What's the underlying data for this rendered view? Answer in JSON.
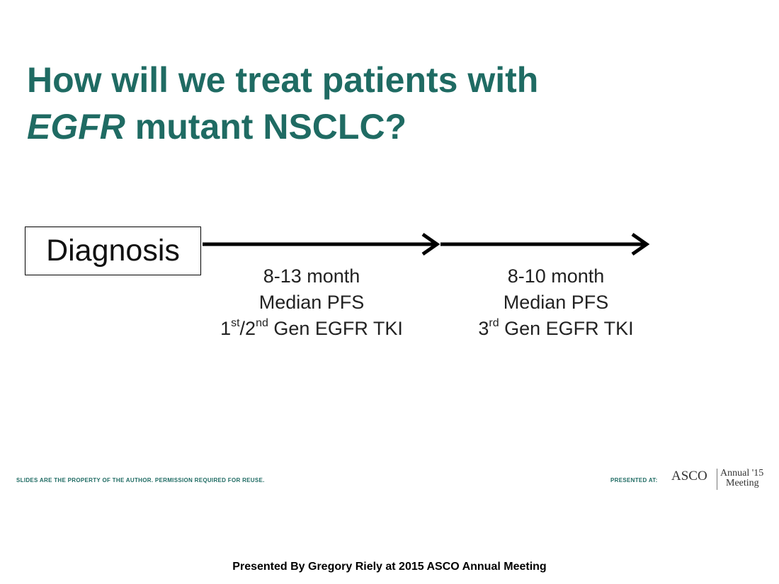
{
  "slide": {
    "title_line1": "How will we treat patients with",
    "title_line2_italic": "EGFR",
    "title_line2_rest": " mutant NSCLC?"
  },
  "timeline": {
    "start_label": "Diagnosis",
    "stages": [
      {
        "duration": "8-13 month",
        "metric": "Median PFS",
        "therapy_ord1": "1",
        "therapy_sup1": "st",
        "therapy_sep": "/2",
        "therapy_sup2": "nd",
        "therapy_rest": " Gen EGFR TKI"
      },
      {
        "duration": "8-10 month",
        "metric": "Median PFS",
        "therapy_ord1": "3",
        "therapy_sup1": "rd",
        "therapy_rest": " Gen EGFR TKI"
      }
    ]
  },
  "branding": {
    "rights": "SLIDES ARE THE PROPERTY OF THE AUTHOR. PERMISSION REQUIRED FOR REUSE.",
    "presented_at": "PRESENTED AT:",
    "asco": "ASCO",
    "annual": "Annual",
    "meeting": "Meeting",
    "year": "'15"
  },
  "footer": "Presented By Gregory Riely at 2015 ASCO Annual Meeting",
  "colors": {
    "title": "#1f6b63",
    "text": "#222222"
  }
}
